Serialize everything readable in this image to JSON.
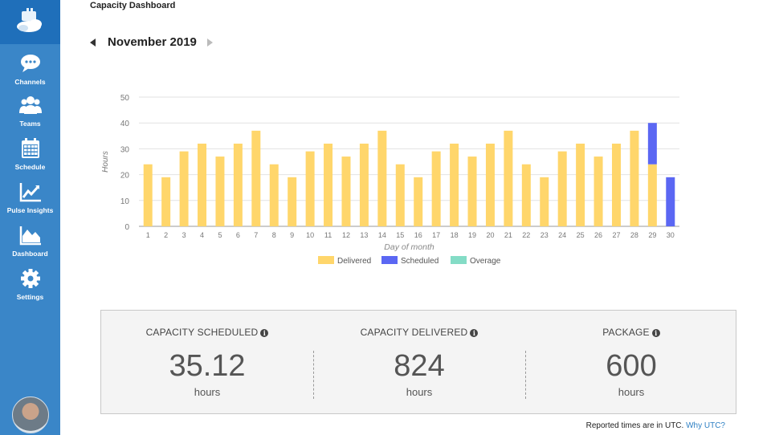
{
  "page": {
    "title": "Capacity Dashboard"
  },
  "sidebar": {
    "items": [
      {
        "label": "Channels",
        "icon": "chat-bubble-icon"
      },
      {
        "label": "Teams",
        "icon": "users-icon"
      },
      {
        "label": "Schedule",
        "icon": "calendar-icon"
      },
      {
        "label": "Pulse Insights",
        "icon": "line-chart-icon"
      },
      {
        "label": "Dashboard",
        "icon": "area-chart-icon"
      },
      {
        "label": "Settings",
        "icon": "gear-icon"
      }
    ]
  },
  "header": {
    "month": "November 2019"
  },
  "colors": {
    "delivered": "#ffd66b",
    "scheduled": "#5b67f3",
    "overage": "#84dcc6",
    "sidebar": "#3a86c8"
  },
  "chart_data": {
    "type": "bar",
    "stacked": true,
    "xlabel": "Day of month",
    "ylabel": "Hours",
    "ylim": [
      0,
      50
    ],
    "yticks": [
      0,
      10,
      20,
      30,
      40,
      50
    ],
    "categories": [
      "1",
      "2",
      "3",
      "4",
      "5",
      "6",
      "7",
      "8",
      "9",
      "10",
      "11",
      "12",
      "13",
      "14",
      "15",
      "16",
      "17",
      "18",
      "19",
      "20",
      "21",
      "22",
      "23",
      "24",
      "25",
      "26",
      "27",
      "28",
      "29",
      "30"
    ],
    "series": [
      {
        "name": "Delivered",
        "color": "#ffd66b",
        "values": [
          24,
          19,
          29,
          32,
          27,
          32,
          37,
          24,
          19,
          29,
          32,
          27,
          32,
          37,
          24,
          19,
          29,
          32,
          27,
          32,
          37,
          24,
          19,
          29,
          32,
          27,
          32,
          37,
          24,
          0
        ]
      },
      {
        "name": "Scheduled",
        "color": "#5b67f3",
        "values": [
          0,
          0,
          0,
          0,
          0,
          0,
          0,
          0,
          0,
          0,
          0,
          0,
          0,
          0,
          0,
          0,
          0,
          0,
          0,
          0,
          0,
          0,
          0,
          0,
          0,
          0,
          0,
          0,
          16,
          19
        ]
      },
      {
        "name": "Overage",
        "color": "#84dcc6",
        "values": [
          0,
          0,
          0,
          0,
          0,
          0,
          0,
          0,
          0,
          0,
          0,
          0,
          0,
          0,
          0,
          0,
          0,
          0,
          0,
          0,
          0,
          0,
          0,
          0,
          0,
          0,
          0,
          0,
          0,
          0
        ]
      }
    ],
    "legend_position": "bottom",
    "grid": true
  },
  "stats": [
    {
      "label": "CAPACITY SCHEDULED",
      "value": "35.12",
      "unit": "hours"
    },
    {
      "label": "CAPACITY DELIVERED",
      "value": "824",
      "unit": "hours"
    },
    {
      "label": "PACKAGE",
      "value": "600",
      "unit": "hours"
    }
  ],
  "footer": {
    "note": "Reported times are in UTC.",
    "link": "Why UTC?"
  }
}
